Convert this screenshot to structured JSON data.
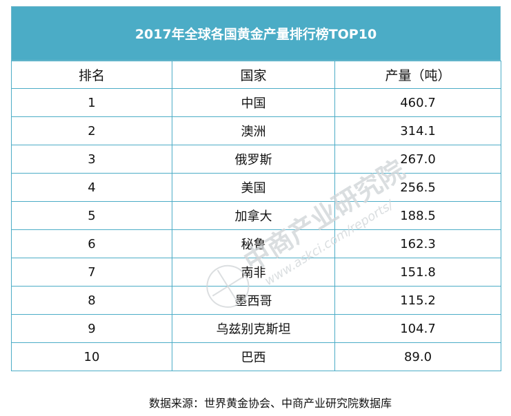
{
  "chart_data": {
    "type": "table",
    "title": "2017年全球各国黄金产量排行榜TOP10",
    "columns": [
      "排名",
      "国家",
      "产量（吨）"
    ],
    "rows": [
      {
        "rank": "1",
        "country": "中国",
        "value": "460.7"
      },
      {
        "rank": "2",
        "country": "澳洲",
        "value": "314.1"
      },
      {
        "rank": "3",
        "country": "俄罗斯",
        "value": "267.0"
      },
      {
        "rank": "4",
        "country": "美国",
        "value": "256.5"
      },
      {
        "rank": "5",
        "country": "加拿大",
        "value": "188.5"
      },
      {
        "rank": "6",
        "country": "秘鲁",
        "value": "162.3"
      },
      {
        "rank": "7",
        "country": "南非",
        "value": "151.8"
      },
      {
        "rank": "8",
        "country": "墨西哥",
        "value": "115.2"
      },
      {
        "rank": "9",
        "country": "乌兹别克斯坦",
        "value": "104.7"
      },
      {
        "rank": "10",
        "country": "巴西",
        "value": "89.0"
      }
    ]
  },
  "source_note": "数据来源：世界黄金协会、中商产业研究院数据库",
  "watermark": {
    "name": "中商产业研究院",
    "url": "www.askci.com/reports/"
  },
  "colors": {
    "header_bg": "#4bacc6",
    "border": "#4bacc6",
    "title_text": "#ffffff"
  }
}
